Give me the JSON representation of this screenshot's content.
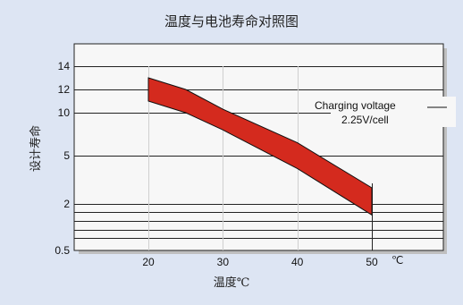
{
  "chart_data": {
    "type": "area",
    "title": "温度与电池寿命对照图",
    "xlabel": "温度℃",
    "ylabel": "设计寿命",
    "x_unit": "℃",
    "x_ticks": [
      20,
      30,
      40,
      50
    ],
    "y_ticks": [
      {
        "value": 14,
        "label": "14"
      },
      {
        "value": 12,
        "label": "12"
      },
      {
        "value": 10,
        "label": "10"
      },
      {
        "value": 5,
        "label": "5"
      },
      {
        "value": 2,
        "label": "2"
      },
      {
        "value": 0.5,
        "label": "0.5"
      }
    ],
    "grid_lines_y": [
      14,
      12,
      10,
      5,
      2,
      1.6,
      1.3,
      1,
      0.75
    ],
    "xlim": [
      10,
      60
    ],
    "series": [
      {
        "kind": "band",
        "color": "#d42a1e",
        "upper": [
          [
            20,
            13
          ],
          [
            25,
            12
          ],
          [
            30,
            10.3
          ],
          [
            40,
            6.5
          ],
          [
            50,
            3.0
          ]
        ],
        "lower": [
          [
            20,
            11
          ],
          [
            25,
            10
          ],
          [
            30,
            8.0
          ],
          [
            40,
            4.2
          ],
          [
            50,
            1.5
          ]
        ]
      }
    ],
    "annotation": {
      "line1": "Charging voltage",
      "line2": "2.25V/cell"
    },
    "colors": {
      "background": "#dde5f3",
      "plot_bg": "#f7f7f7",
      "band": "#d42a1e"
    }
  }
}
